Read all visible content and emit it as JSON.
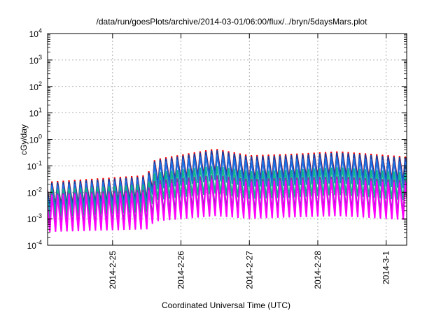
{
  "chart_data": {
    "type": "line",
    "title": "/data/run/goesPlots/archive/2014-03-01/06:00/flux/../bryn/5daysMars.plot",
    "xlabel": "Coordinated Universal Time (UTC)",
    "ylabel": "cGy/day",
    "yscale": "log",
    "ylim_exp": [
      -4,
      4
    ],
    "y_ticks": [
      {
        "base": "10",
        "exp": "4",
        "value": 10000
      },
      {
        "base": "10",
        "exp": "3",
        "value": 1000
      },
      {
        "base": "10",
        "exp": "2",
        "value": 100
      },
      {
        "base": "10",
        "exp": "1",
        "value": 10
      },
      {
        "base": "10",
        "exp": "0",
        "value": 1
      },
      {
        "base": "10",
        "exp": "-1",
        "value": 0.1
      },
      {
        "base": "10",
        "exp": "-2",
        "value": 0.01
      },
      {
        "base": "10",
        "exp": "-3",
        "value": 0.001
      },
      {
        "base": "10",
        "exp": "-4",
        "value": 0.0001
      }
    ],
    "xlim_days": [
      24.05,
      29.3
    ],
    "x_ticks": [
      {
        "label": "2014-2-25",
        "day": 25
      },
      {
        "label": "2014-2-26",
        "day": 26
      },
      {
        "label": "2014-2-27",
        "day": 27
      },
      {
        "label": "2014-2-28",
        "day": 28
      },
      {
        "label": "2014-3-1",
        "day": 29
      }
    ],
    "grid": true,
    "cycles_per_day": 12,
    "series": [
      {
        "name": "red",
        "color": "#ff0000",
        "peak_log": [
          [
            24.05,
            -1.6
          ],
          [
            25.5,
            -1.35
          ],
          [
            25.62,
            -0.75
          ],
          [
            26.5,
            -0.35
          ],
          [
            27.0,
            -0.6
          ],
          [
            27.6,
            -0.55
          ],
          [
            28.3,
            -0.45
          ],
          [
            29.3,
            -0.65
          ]
        ],
        "drop_log": 0.95
      },
      {
        "name": "navy",
        "color": "#1a3f9e",
        "peak_log": [
          [
            24.05,
            -1.65
          ],
          [
            25.5,
            -1.4
          ],
          [
            25.62,
            -0.8
          ],
          [
            26.5,
            -0.4
          ],
          [
            27.0,
            -0.65
          ],
          [
            27.6,
            -0.6
          ],
          [
            28.3,
            -0.5
          ],
          [
            29.3,
            -0.7
          ]
        ],
        "drop_log": 0.95
      },
      {
        "name": "blue",
        "color": "#1e6fe0",
        "peak_log": [
          [
            24.05,
            -1.75
          ],
          [
            25.5,
            -1.5
          ],
          [
            25.62,
            -0.9
          ],
          [
            26.5,
            -0.55
          ],
          [
            27.0,
            -0.8
          ],
          [
            27.6,
            -0.75
          ],
          [
            28.3,
            -0.65
          ],
          [
            29.3,
            -0.85
          ]
        ],
        "drop_log": 1.0
      },
      {
        "name": "teal",
        "color": "#13b58c",
        "peak_log": [
          [
            24.05,
            -1.9
          ],
          [
            25.5,
            -1.7
          ],
          [
            25.62,
            -1.25
          ],
          [
            26.5,
            -1.0
          ],
          [
            27.0,
            -1.2
          ],
          [
            27.6,
            -1.15
          ],
          [
            28.3,
            -1.05
          ],
          [
            29.3,
            -1.25
          ]
        ],
        "drop_log": 1.05
      },
      {
        "name": "purple",
        "color": "#8c2db5",
        "peak_log": [
          [
            24.05,
            -2.05
          ],
          [
            25.5,
            -1.9
          ],
          [
            25.62,
            -1.55
          ],
          [
            26.5,
            -1.35
          ],
          [
            27.0,
            -1.5
          ],
          [
            27.6,
            -1.45
          ],
          [
            28.3,
            -1.4
          ],
          [
            29.3,
            -1.55
          ]
        ],
        "drop_log": 1.25
      },
      {
        "name": "magenta",
        "color": "#ff00ff",
        "peak_log": [
          [
            24.05,
            -2.1
          ],
          [
            25.5,
            -2.0
          ],
          [
            25.62,
            -1.7
          ],
          [
            26.5,
            -1.5
          ],
          [
            27.0,
            -1.6
          ],
          [
            27.6,
            -1.55
          ],
          [
            28.3,
            -1.5
          ],
          [
            29.3,
            -1.65
          ]
        ],
        "drop_log": 1.4
      }
    ]
  }
}
